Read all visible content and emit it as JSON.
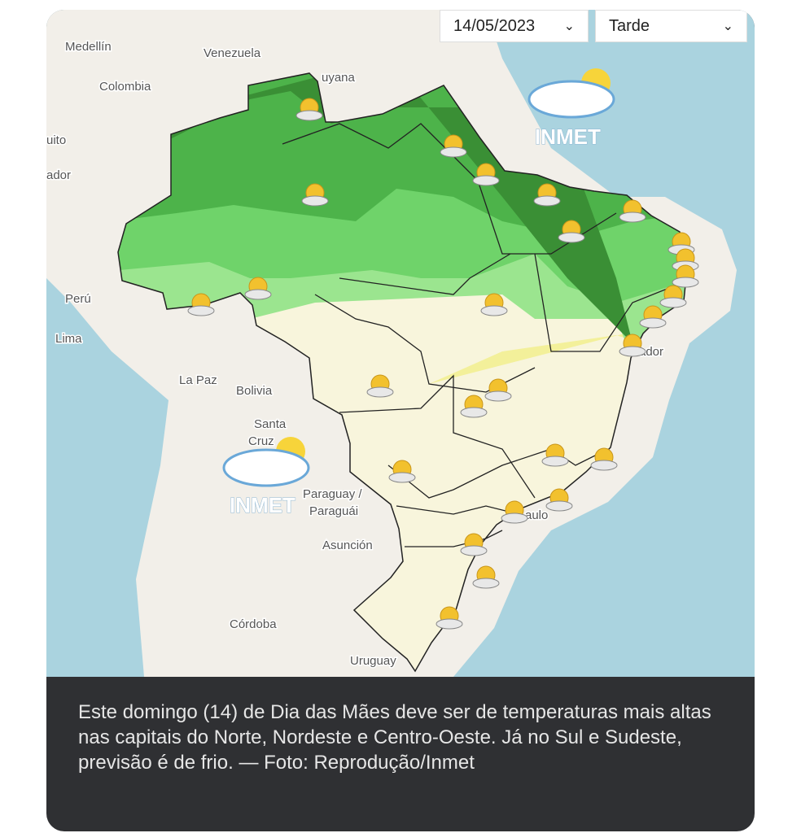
{
  "header": {
    "date": "14/05/2023",
    "period": "Tarde"
  },
  "map": {
    "labels": [
      "Medellín",
      "Venezuela",
      "Colombia",
      "uyana",
      "uito",
      "ador",
      "Perú",
      "Lima",
      "La Paz",
      "Bolivia",
      "Santa",
      "Cruz",
      "Paraguay /",
      "Paraguái",
      "Asunción",
      "Córdoba",
      "Uruguay",
      "ador",
      "aulo"
    ],
    "logos": [
      "INMET",
      "INMET"
    ]
  },
  "caption": "Este domingo (14) de Dia das Mães deve ser de temperaturas mais altas nas capitais do Norte, Nordeste e Centro-Oeste. Já no Sul e Sudeste, previsão é de frio. — Foto: Reprodução/Inmet"
}
